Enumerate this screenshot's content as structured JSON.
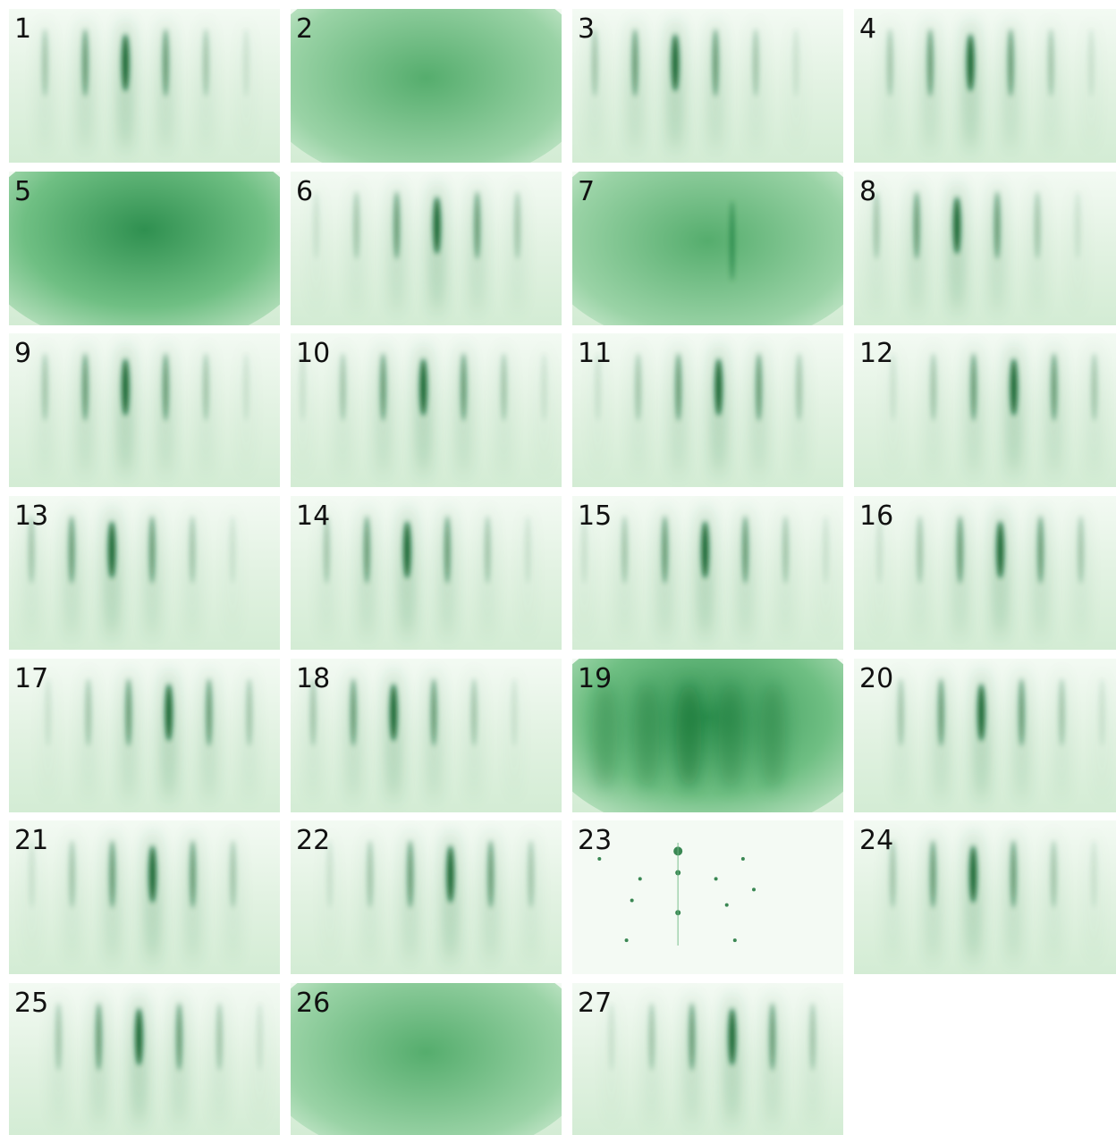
{
  "panels": [
    "1",
    "2",
    "3",
    "4",
    "5",
    "6",
    "7",
    "8",
    "9",
    "10",
    "11",
    "12",
    "13",
    "14",
    "15",
    "16",
    "17",
    "18",
    "19",
    "20",
    "21",
    "22",
    "23",
    "24",
    "25",
    "26",
    "27"
  ]
}
